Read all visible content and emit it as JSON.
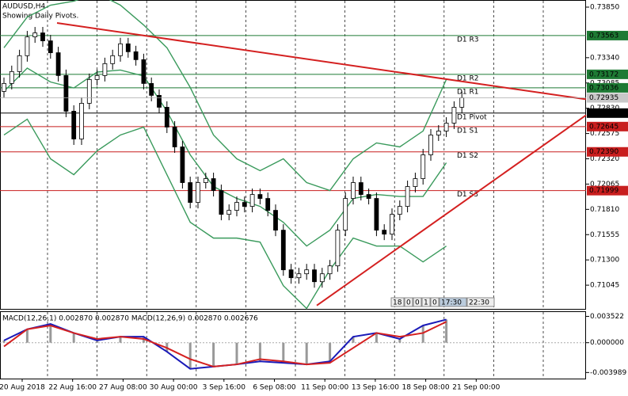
{
  "chart_data": {
    "type": "candlestick",
    "title": "AUDUSD,H4",
    "subtitle": "Showing Daily Pivots.",
    "ylim": [
      0.70806,
      0.73914
    ],
    "yticks": [
      {
        "value": 0.7385,
        "label": "0.73850"
      },
      {
        "value": 0.7334,
        "label": "0.73340"
      },
      {
        "value": 0.73085,
        "label": "0.73085"
      },
      {
        "value": 0.7283,
        "label": "0.72830"
      },
      {
        "value": 0.72575,
        "label": "0.72575"
      },
      {
        "value": 0.7232,
        "label": "0.72320"
      },
      {
        "value": 0.72065,
        "label": "0.72065"
      },
      {
        "value": 0.7181,
        "label": "0.71810"
      },
      {
        "value": 0.71555,
        "label": "0.71555"
      },
      {
        "value": 0.713,
        "label": "0.71300"
      },
      {
        "value": 0.71045,
        "label": "0.71045"
      }
    ],
    "categories": [
      "20 Aug 2018",
      "22 Aug 16:00",
      "27 Aug 08:00",
      "30 Aug 00:00",
      "3 Sep 16:00",
      "6 Sep 08:00",
      "11 Sep 00:00",
      "13 Sep 16:00",
      "18 Sep 08:00",
      "21 Sep 00:00"
    ],
    "open": [
      0.73,
      0.7308,
      0.732,
      0.7336,
      0.7355,
      0.7359,
      0.7351,
      0.7339,
      0.7316,
      0.728,
      0.7252,
      0.7288,
      0.7312,
      0.7316,
      0.7328,
      0.7336,
      0.7348,
      0.734,
      0.7332,
      0.7308,
      0.7296,
      0.7284,
      0.7264,
      0.7244,
      0.7208,
      0.7188,
      0.7208,
      0.7212,
      0.72,
      0.7176,
      0.718,
      0.7188,
      0.7184,
      0.7196,
      0.7192,
      0.718,
      0.716,
      0.712,
      0.7112,
      0.7116,
      0.712,
      0.7108,
      0.7116,
      0.7124,
      0.716,
      0.7192,
      0.7208,
      0.7196,
      0.7192,
      0.716,
      0.7156,
      0.7176,
      0.7184,
      0.7204,
      0.7212,
      0.7236,
      0.7256,
      0.726,
      0.7268,
      0.7284
    ],
    "high": [
      0.7314,
      0.7326,
      0.7342,
      0.7361,
      0.7365,
      0.7365,
      0.7357,
      0.7345,
      0.7322,
      0.7286,
      0.7294,
      0.7318,
      0.7322,
      0.7334,
      0.7342,
      0.7354,
      0.7354,
      0.7346,
      0.7338,
      0.7314,
      0.7302,
      0.729,
      0.727,
      0.725,
      0.7214,
      0.7214,
      0.7218,
      0.7218,
      0.7206,
      0.7186,
      0.7194,
      0.7194,
      0.7202,
      0.7202,
      0.7198,
      0.7186,
      0.7166,
      0.7126,
      0.7122,
      0.7126,
      0.7126,
      0.7122,
      0.713,
      0.7166,
      0.7198,
      0.7214,
      0.7214,
      0.7202,
      0.7198,
      0.7166,
      0.7182,
      0.719,
      0.721,
      0.7218,
      0.7242,
      0.7262,
      0.7266,
      0.7274,
      0.729,
      0.73
    ],
    "low": [
      0.7294,
      0.7302,
      0.7314,
      0.733,
      0.7349,
      0.7345,
      0.7333,
      0.731,
      0.7274,
      0.7246,
      0.7246,
      0.7282,
      0.7306,
      0.731,
      0.7322,
      0.733,
      0.7334,
      0.7326,
      0.7302,
      0.729,
      0.7278,
      0.7258,
      0.7238,
      0.7202,
      0.7182,
      0.7182,
      0.7202,
      0.7194,
      0.717,
      0.717,
      0.7174,
      0.7178,
      0.7178,
      0.7186,
      0.7174,
      0.7154,
      0.7114,
      0.7106,
      0.7106,
      0.711,
      0.7102,
      0.7102,
      0.711,
      0.7118,
      0.7154,
      0.7186,
      0.719,
      0.7186,
      0.7154,
      0.715,
      0.715,
      0.717,
      0.7178,
      0.7198,
      0.7206,
      0.723,
      0.725,
      0.7254,
      0.7262,
      0.7278
    ],
    "close": [
      0.7308,
      0.732,
      0.7336,
      0.7355,
      0.7359,
      0.7351,
      0.7339,
      0.7316,
      0.728,
      0.7252,
      0.7288,
      0.7312,
      0.7316,
      0.7328,
      0.7336,
      0.7348,
      0.734,
      0.7332,
      0.7308,
      0.7296,
      0.7284,
      0.7264,
      0.7244,
      0.7208,
      0.7188,
      0.7208,
      0.7212,
      0.72,
      0.7176,
      0.718,
      0.7188,
      0.7184,
      0.7196,
      0.7192,
      0.718,
      0.716,
      0.712,
      0.7112,
      0.7116,
      0.712,
      0.7108,
      0.7116,
      0.7124,
      0.716,
      0.7192,
      0.7208,
      0.7196,
      0.7192,
      0.716,
      0.7156,
      0.7176,
      0.7184,
      0.7204,
      0.7212,
      0.7236,
      0.7256,
      0.726,
      0.7268,
      0.7284,
      0.72935
    ],
    "bands": {
      "color": "#3a9a5c",
      "upper": [
        0.7344,
        0.7375,
        0.7387,
        0.7391,
        0.7399,
        0.7387,
        0.7367,
        0.7344,
        0.7304,
        0.7256,
        0.7232,
        0.722,
        0.7232,
        0.7208,
        0.72,
        0.7232,
        0.7248,
        0.7244,
        0.726,
        0.7312
      ],
      "middle": [
        0.73,
        0.73235,
        0.73095,
        0.73035,
        0.73195,
        0.73215,
        0.73155,
        0.728,
        0.7236,
        0.7204,
        0.7192,
        0.7184,
        0.7168,
        0.7144,
        0.716,
        0.7192,
        0.7196,
        0.7194,
        0.7194,
        0.7228
      ],
      "lower": [
        0.7256,
        0.7272,
        0.7232,
        0.7216,
        0.724,
        0.7256,
        0.7264,
        0.7216,
        0.7168,
        0.7152,
        0.7152,
        0.7148,
        0.7104,
        0.7081,
        0.712,
        0.7152,
        0.7144,
        0.7144,
        0.7128,
        0.7144
      ]
    },
    "pivots": [
      {
        "name": "D1 R3",
        "value": 0.73563,
        "label": "0.73563",
        "color": "#1e7a34"
      },
      {
        "name": "D1 R2",
        "value": 0.73172,
        "label": "0.73172",
        "color": "#1e7a34"
      },
      {
        "name": "D1 R1",
        "value": 0.73036,
        "label": "0.73036",
        "color": "#1e7a34"
      },
      {
        "name": "D1 Pivot",
        "value": 0.72781,
        "label": "0.72781",
        "color": "#000000"
      },
      {
        "name": "D1 S1",
        "value": 0.72645,
        "label": "0.72645",
        "color": "#c81e1e"
      },
      {
        "name": "D1 S2",
        "value": 0.7239,
        "label": "0.72390",
        "color": "#c81e1e"
      },
      {
        "name": "D1 S3",
        "value": 0.71999,
        "label": "0.71999",
        "color": "#c81e1e"
      }
    ],
    "current_price": {
      "value": 0.72935,
      "label": "0.72935"
    },
    "trendlines": [
      {
        "color": "#d42020",
        "values": [
          0.7369,
          0.7292
        ]
      },
      {
        "color": "#d42020",
        "values": [
          0.7084,
          0.7276
        ]
      }
    ],
    "macd": {
      "title": "MACD(12,26,1) 0.002870 0.002870 MACD(12,26,9) 0.002870 0.002676",
      "ylim": [
        -0.0048,
        0.0041
      ],
      "yticks": [
        {
          "value": 0.003522,
          "label": "0.003522"
        },
        {
          "value": 0,
          "label": "0.000000"
        },
        {
          "value": -0.003989,
          "label": "-0.003989"
        }
      ],
      "series": [
        {
          "color": "#1a1ab8",
          "values": [
            0.0003,
            0.0018,
            0.0025,
            0.0013,
            0.0003,
            0.0008,
            0.0008,
            -0.0012,
            -0.0035,
            -0.0032,
            -0.0029,
            -0.0025,
            -0.0027,
            -0.0029,
            -0.0025,
            0.0008,
            0.0013,
            0.0005,
            0.0023,
            0.0031
          ]
        },
        {
          "color": "#d42020",
          "values": [
            -0.0005,
            0.0018,
            0.0023,
            0.0013,
            0.0005,
            0.0008,
            0.0005,
            -0.0007,
            -0.0022,
            -0.0032,
            -0.0029,
            -0.0022,
            -0.0025,
            -0.0029,
            -0.0027,
            -0.0007,
            0.0013,
            0.0008,
            0.0013,
            0.0028
          ]
        }
      ]
    },
    "timeframe_buttons": [
      "18",
      "0",
      "0",
      "1",
      "0",
      "17:30",
      "22:30"
    ]
  }
}
